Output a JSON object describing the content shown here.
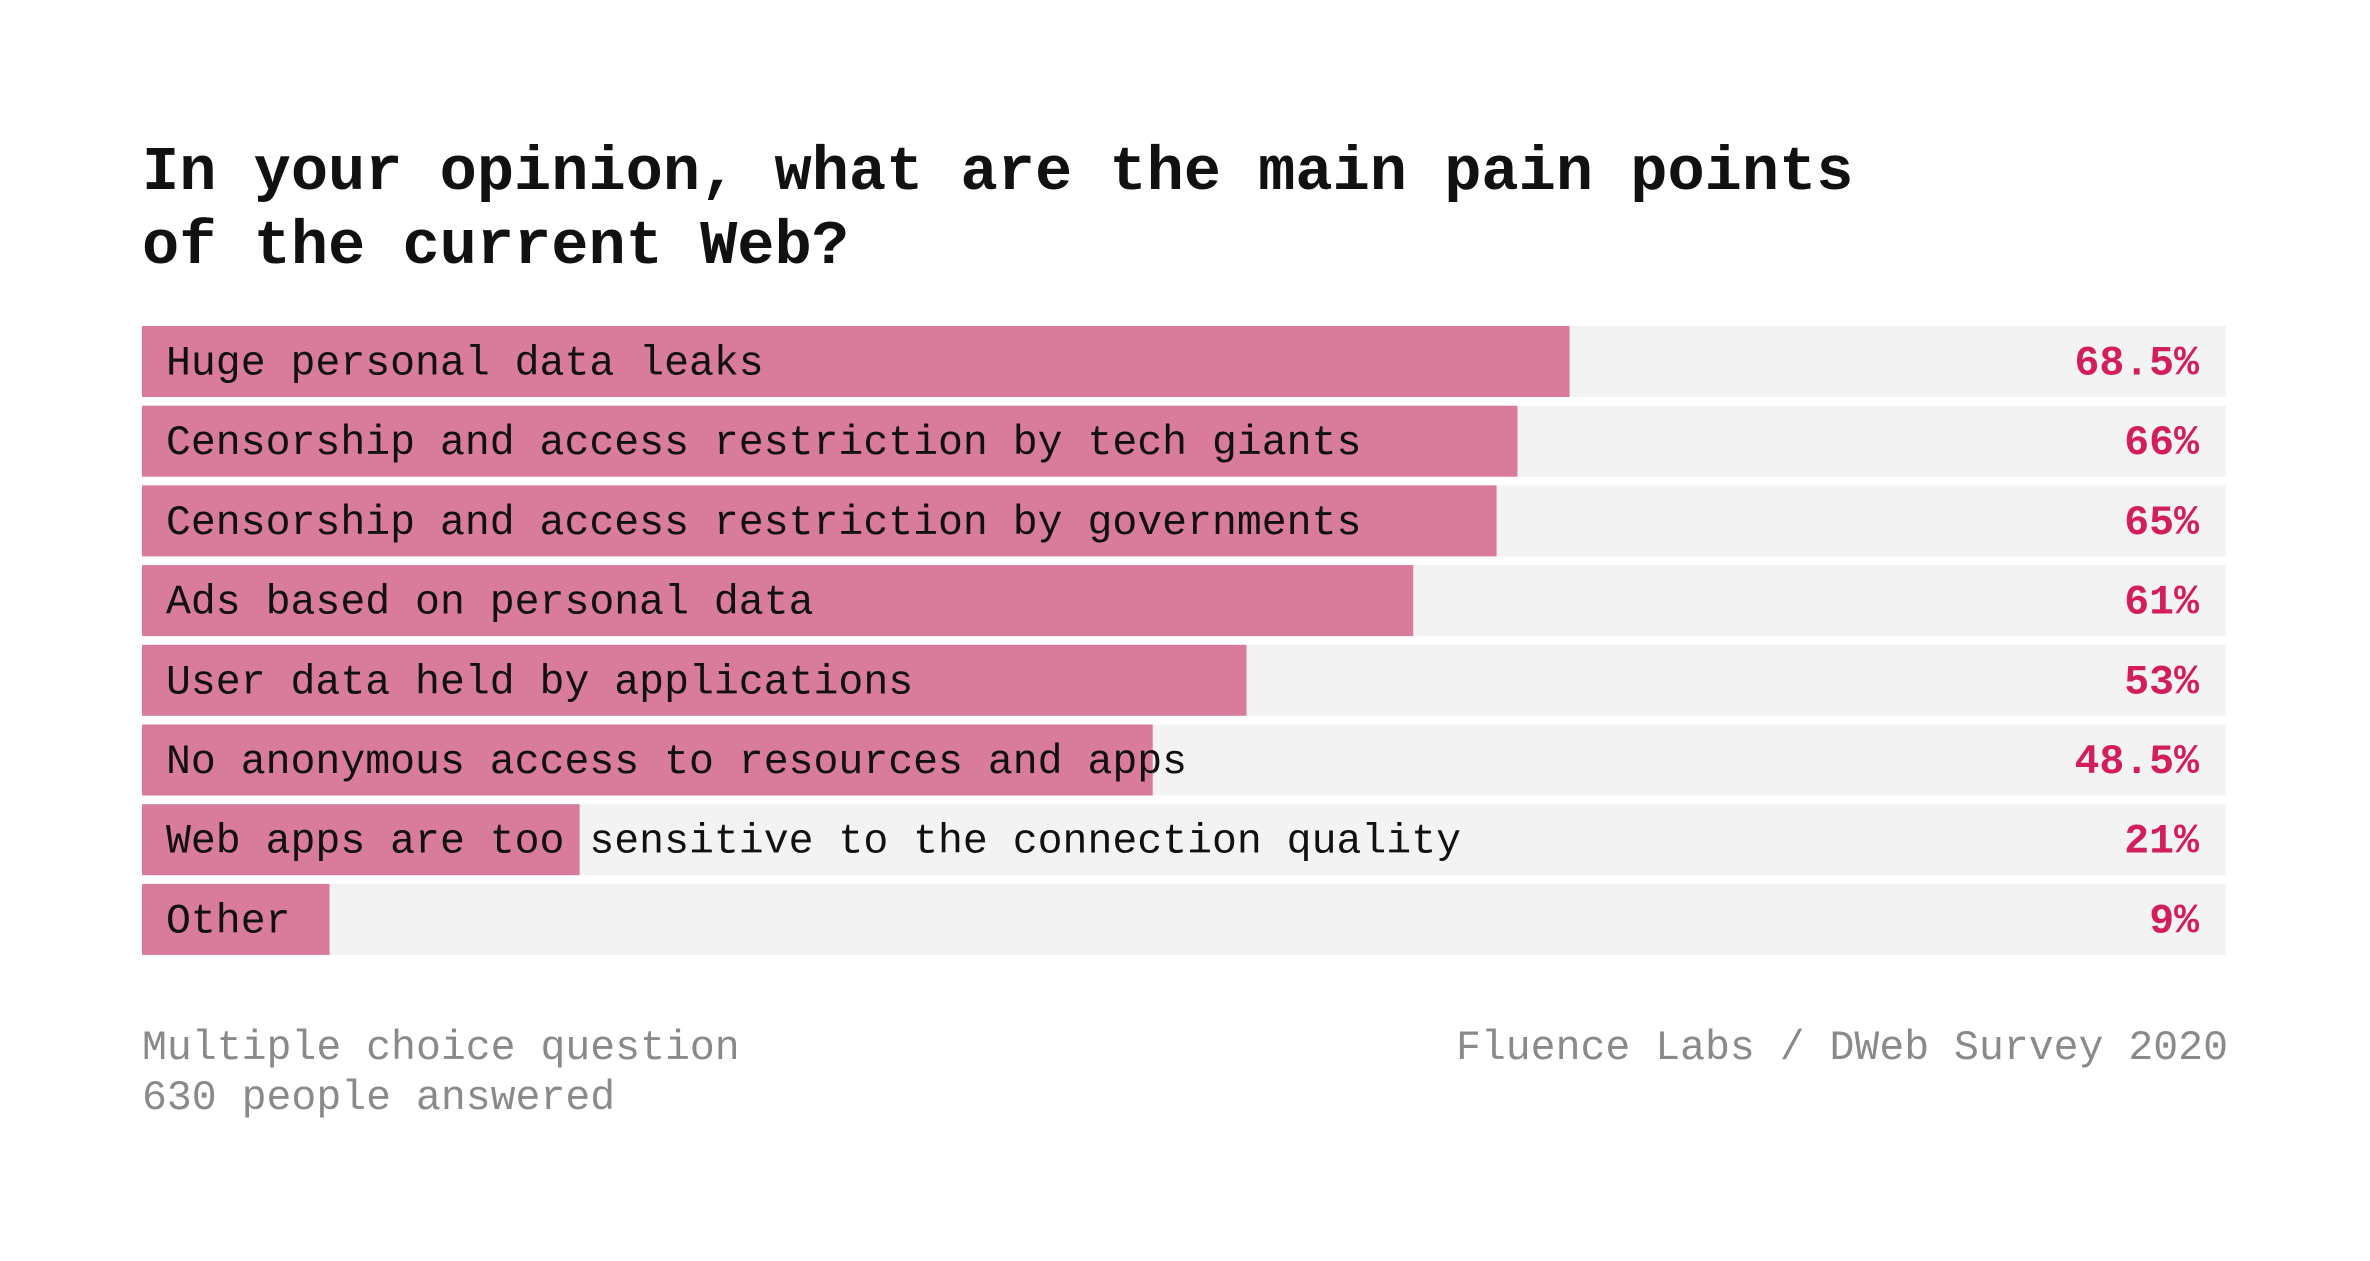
{
  "chart_data": {
    "type": "bar",
    "orientation": "horizontal",
    "title": "In your opinion, what are the main pain points of the current Web?",
    "categories": [
      "Huge personal data leaks",
      "Censorship and access restriction by tech giants",
      "Censorship and access restriction by governments",
      "Ads based on personal data",
      "User data held by applications",
      "No anonymous access to resources and apps",
      "Web apps are too sensitive to the connection quality",
      "Other"
    ],
    "values": [
      68.5,
      66,
      65,
      61,
      53,
      48.5,
      21,
      9
    ],
    "value_labels": [
      "68.5%",
      "66%",
      "65%",
      "61%",
      "53%",
      "48.5%",
      "21%",
      "9%"
    ],
    "color": "#d97b9b",
    "track_color": "#f3f3f3",
    "label_color": "#d21f5c",
    "xlim": [
      0,
      100
    ],
    "notes": [
      "Multiple choice question",
      "630 people answered"
    ],
    "source": "Fluence Labs / DWeb Survey 2020"
  }
}
